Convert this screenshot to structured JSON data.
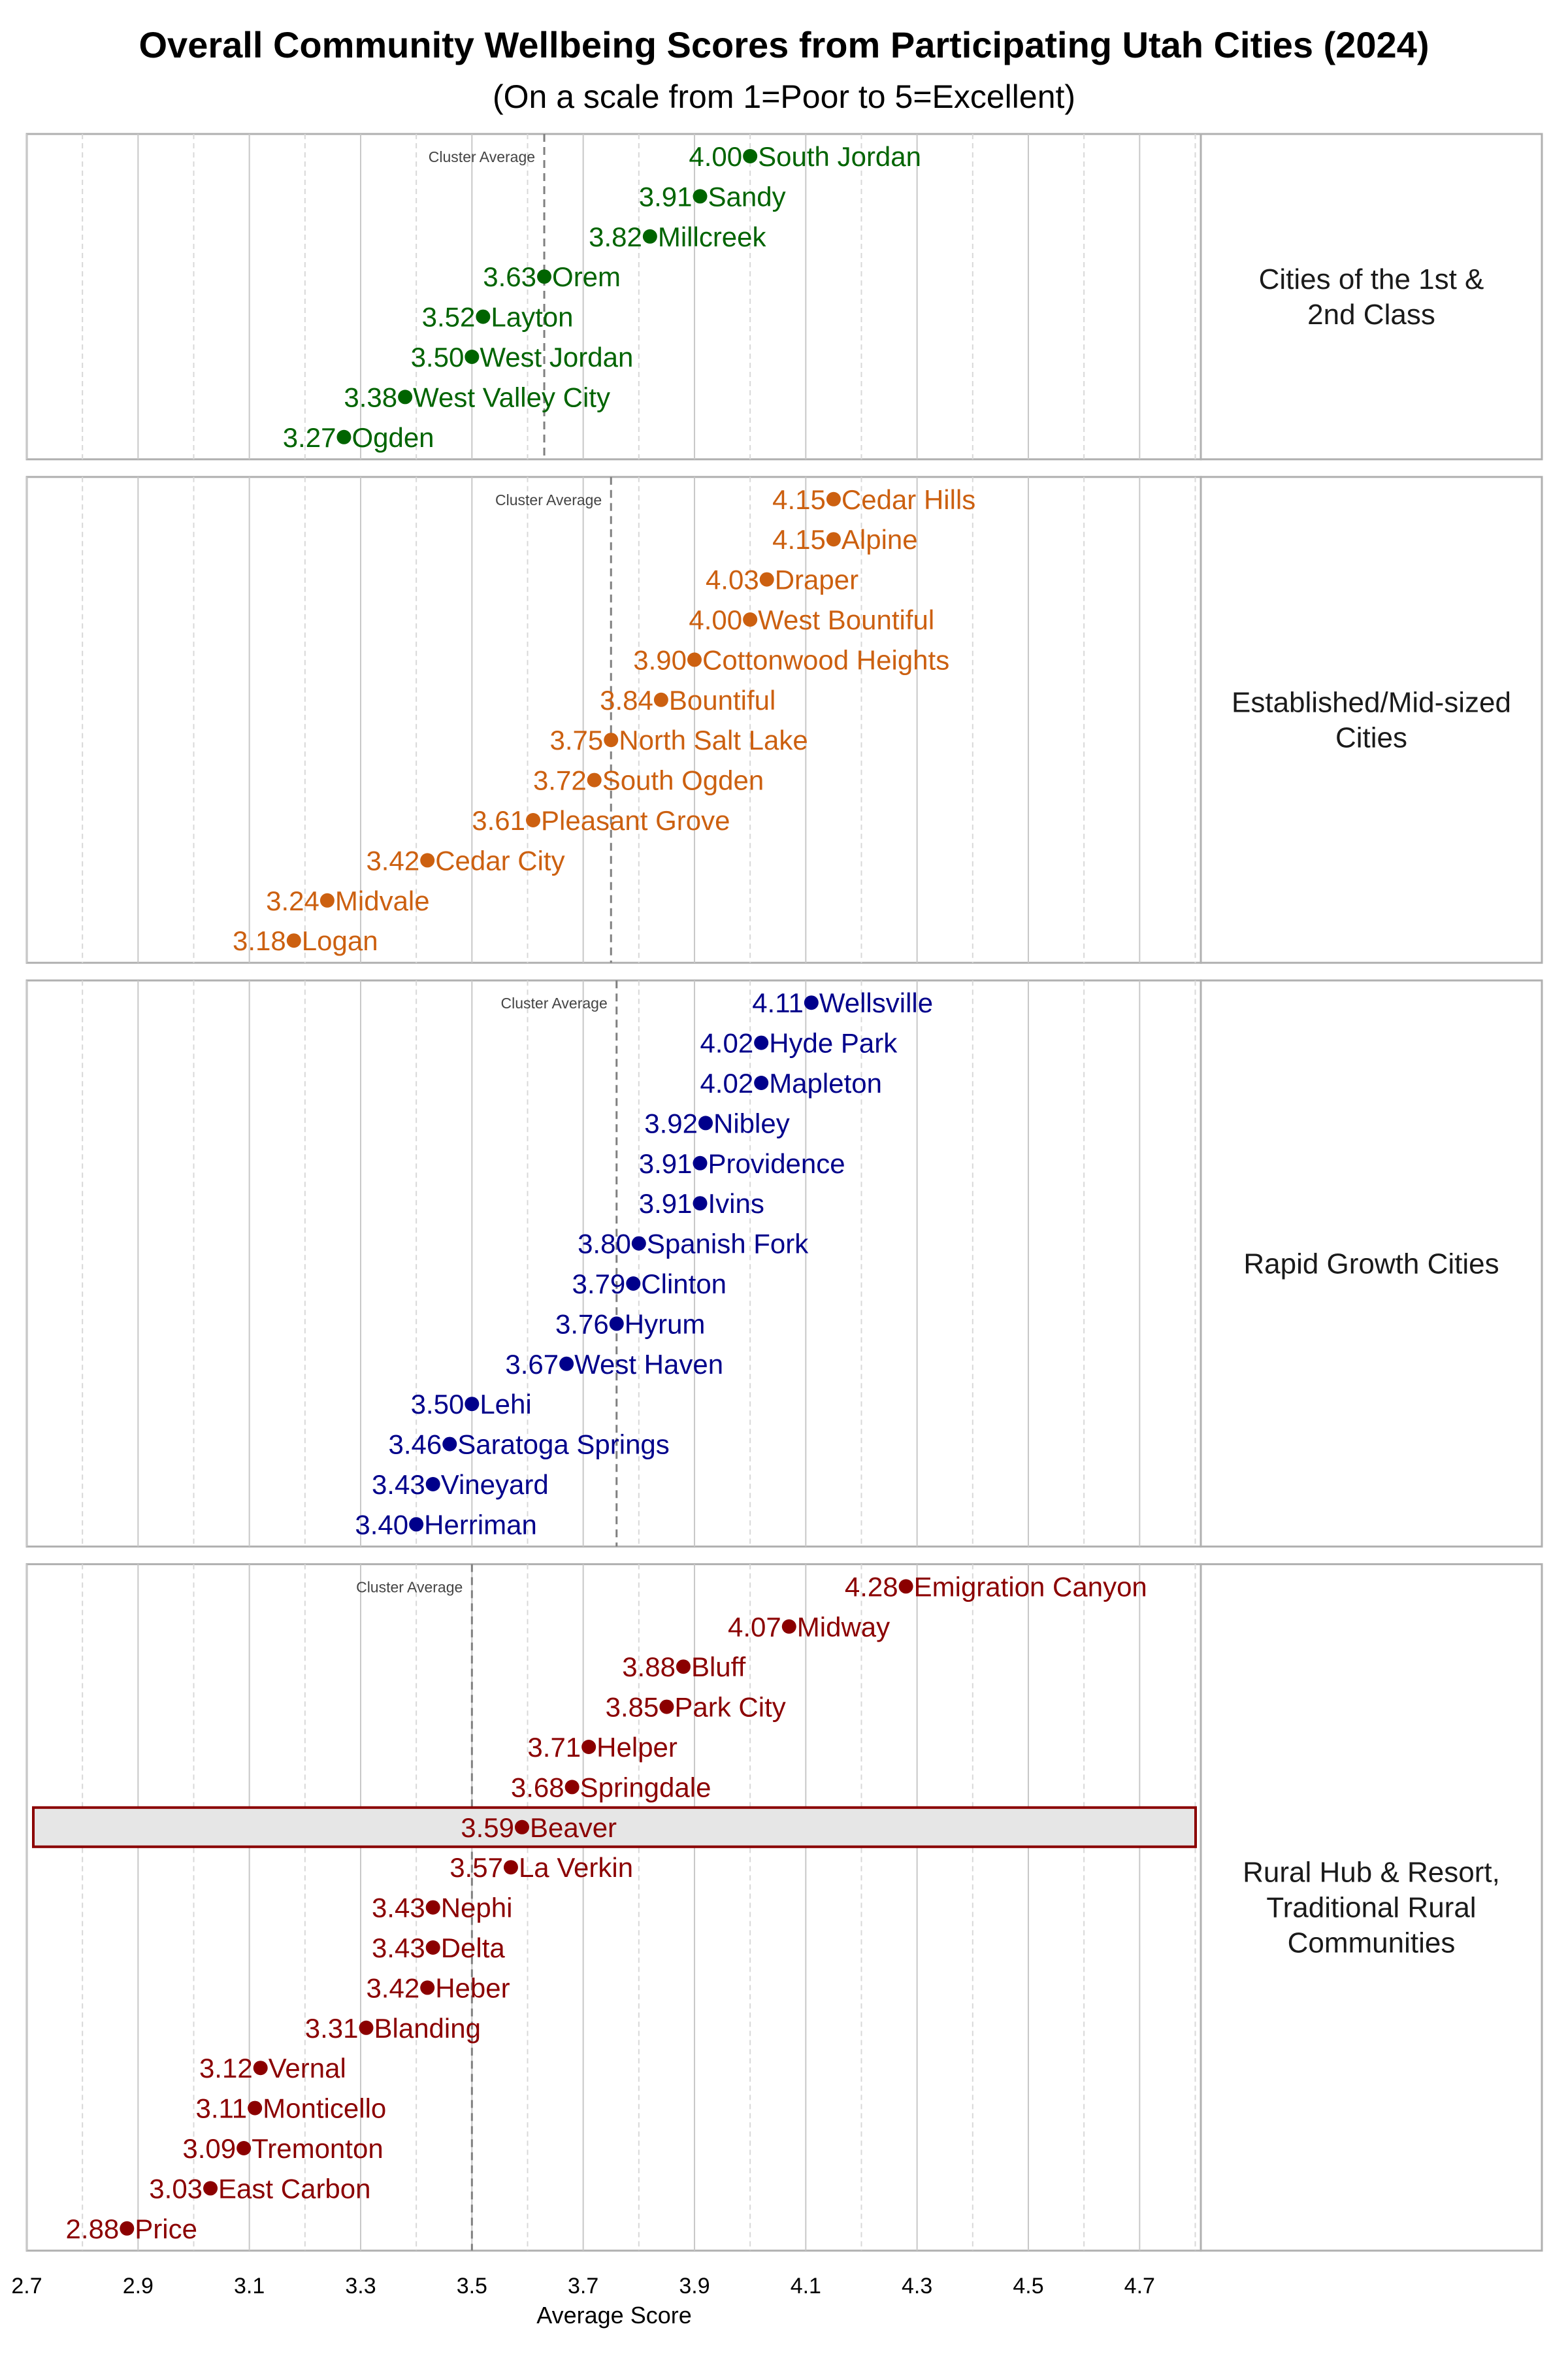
{
  "chart_data": {
    "type": "scatter",
    "title": "Overall Community Wellbeing Scores from Participating Utah Cities (2024)",
    "subtitle": "(On a scale from 1=Poor to 5=Excellent)",
    "xlabel": "Average Score",
    "xlim": [
      2.7,
      4.81
    ],
    "xticks": [
      "2.7",
      "2.9",
      "3.1",
      "3.3",
      "3.5",
      "3.7",
      "3.9",
      "4.1",
      "4.3",
      "4.5",
      "4.7"
    ],
    "grid": true,
    "avg_label": "Cluster Average",
    "highlight": "Beaver",
    "panels": [
      {
        "label": "Cities of the 1st & 2nd Class",
        "label_lines": [
          "Cities of the 1st &",
          "2nd Class"
        ],
        "color": "#006400",
        "average": 3.63,
        "points": [
          [
            "South Jordan",
            4.0
          ],
          [
            "Sandy",
            3.91
          ],
          [
            "Millcreek",
            3.82
          ],
          [
            "Orem",
            3.63
          ],
          [
            "Layton",
            3.52
          ],
          [
            "West Jordan",
            3.5
          ],
          [
            "West Valley City",
            3.38
          ],
          [
            "Ogden",
            3.27
          ]
        ]
      },
      {
        "label": "Established/Mid-sized Cities",
        "label_lines": [
          "Established/Mid-sized",
          "Cities"
        ],
        "color": "#CC6010",
        "average": 3.75,
        "points": [
          [
            "Cedar Hills",
            4.15
          ],
          [
            "Alpine",
            4.15
          ],
          [
            "Draper",
            4.03
          ],
          [
            "West Bountiful",
            4.0
          ],
          [
            "Cottonwood Heights",
            3.9
          ],
          [
            "Bountiful",
            3.84
          ],
          [
            "North Salt Lake",
            3.75
          ],
          [
            "South Ogden",
            3.72
          ],
          [
            "Pleasant Grove",
            3.61
          ],
          [
            "Cedar City",
            3.42
          ],
          [
            "Midvale",
            3.24
          ],
          [
            "Logan",
            3.18
          ]
        ]
      },
      {
        "label": "Rapid Growth Cities",
        "label_lines": [
          "Rapid Growth Cities"
        ],
        "color": "#00008B",
        "average": 3.76,
        "points": [
          [
            "Wellsville",
            4.11
          ],
          [
            "Hyde Park",
            4.02
          ],
          [
            "Mapleton",
            4.02
          ],
          [
            "Nibley",
            3.92
          ],
          [
            "Providence",
            3.91
          ],
          [
            "Ivins",
            3.91
          ],
          [
            "Spanish Fork",
            3.8
          ],
          [
            "Clinton",
            3.79
          ],
          [
            "Hyrum",
            3.76
          ],
          [
            "West Haven",
            3.67
          ],
          [
            "Lehi",
            3.5
          ],
          [
            "Saratoga Springs",
            3.46
          ],
          [
            "Vineyard",
            3.43
          ],
          [
            "Herriman",
            3.4
          ]
        ]
      },
      {
        "label": "Rural Hub & Resort, Traditional Rural Communities",
        "label_lines": [
          "Rural Hub & Resort,",
          "Traditional Rural",
          "Communities"
        ],
        "color": "#8B0000",
        "average": 3.5,
        "points": [
          [
            "Emigration Canyon",
            4.28
          ],
          [
            "Midway",
            4.07
          ],
          [
            "Bluff",
            3.88
          ],
          [
            "Park City",
            3.85
          ],
          [
            "Helper",
            3.71
          ],
          [
            "Springdale",
            3.68
          ],
          [
            "Beaver",
            3.59
          ],
          [
            "La Verkin",
            3.57
          ],
          [
            "Nephi",
            3.43
          ],
          [
            "Delta",
            3.43
          ],
          [
            "Heber",
            3.42
          ],
          [
            "Blanding",
            3.31
          ],
          [
            "Vernal",
            3.12
          ],
          [
            "Monticello",
            3.11
          ],
          [
            "Tremonton",
            3.09
          ],
          [
            "East Carbon",
            3.03
          ],
          [
            "Price",
            2.88
          ]
        ]
      }
    ]
  }
}
